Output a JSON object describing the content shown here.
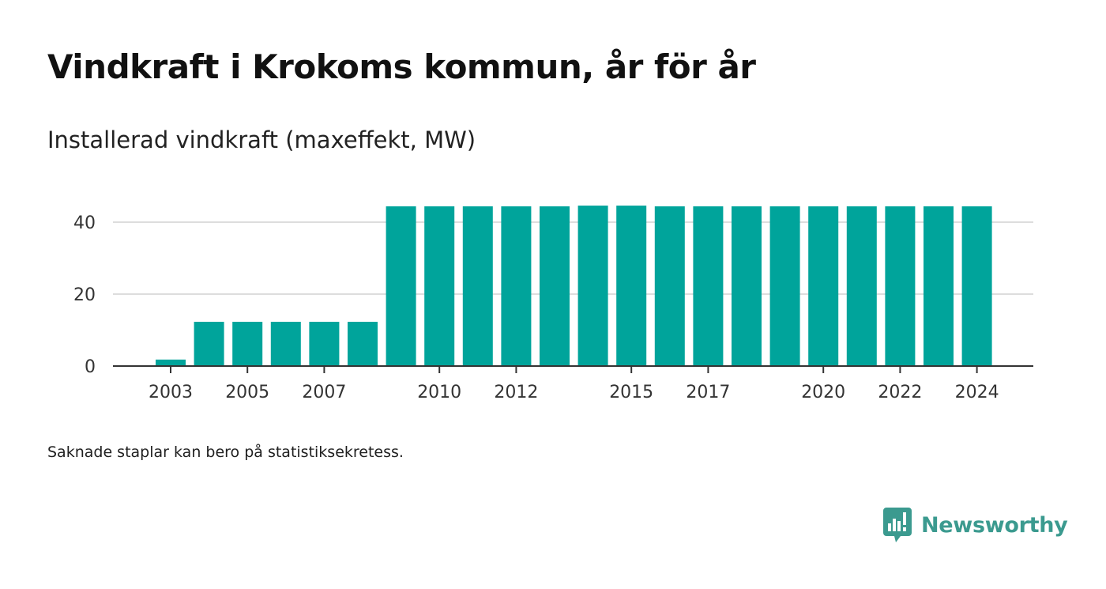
{
  "title": "Vindkraft i Krokoms kommun, år för år",
  "subtitle": "Installerad vindkraft (maxeffekt, MW)",
  "footnote": "Saknade staplar kan bero på statistiksekretess.",
  "brand": {
    "name": "Newsworthy",
    "icon": "newsworthy-logo-icon"
  },
  "colors": {
    "bar": "#00a49b",
    "grid": "#dddddd",
    "axis": "#333333",
    "brand": "#3b9a8f"
  },
  "chart_data": {
    "type": "bar",
    "categories": [
      "2003",
      "2004",
      "2005",
      "2006",
      "2007",
      "2008",
      "2009",
      "2010",
      "2011",
      "2012",
      "2013",
      "2014",
      "2015",
      "2016",
      "2017",
      "2018",
      "2019",
      "2020",
      "2021",
      "2022",
      "2023",
      "2024"
    ],
    "values": [
      1.8,
      12.3,
      12.3,
      12.3,
      12.3,
      12.3,
      44.4,
      44.4,
      44.4,
      44.4,
      44.4,
      44.6,
      44.6,
      44.4,
      44.4,
      44.4,
      44.4,
      44.4,
      44.4,
      44.4,
      44.4,
      44.4
    ],
    "xticks": [
      "2003",
      "2005",
      "2007",
      "2010",
      "2012",
      "2015",
      "2017",
      "2020",
      "2022",
      "2024"
    ],
    "yticks": [
      0,
      20,
      40
    ],
    "ylim": [
      0,
      50
    ],
    "grid": true,
    "legend": "none"
  }
}
